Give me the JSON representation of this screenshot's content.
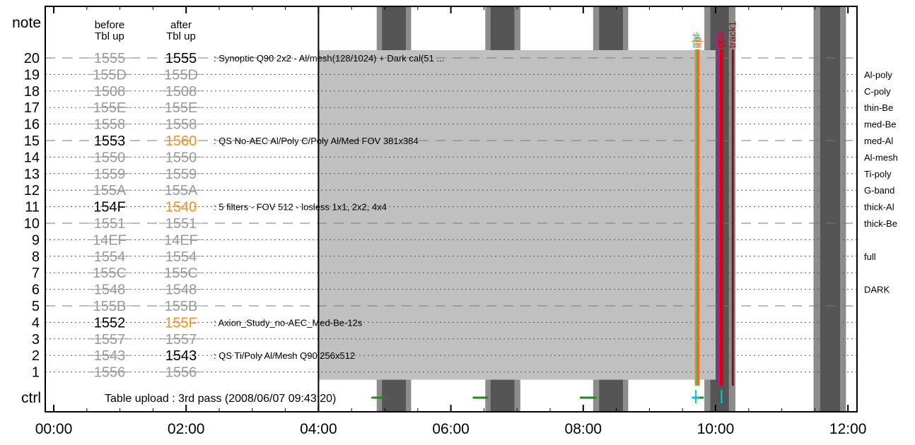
{
  "chart_data": {
    "type": "timeline",
    "title": "",
    "x_axis": {
      "unit": "hours",
      "range": [
        0,
        12.32
      ],
      "tick_labels": [
        "00:00",
        "02:00",
        "04:00",
        "06:00",
        "08:00",
        "10:00",
        "12:00"
      ],
      "tick_values": [
        0,
        2,
        4,
        6,
        8,
        10,
        12
      ]
    },
    "y_axis": {
      "top_label": "note",
      "bottom_label": "ctrl",
      "rows": [
        20,
        19,
        18,
        17,
        16,
        15,
        14,
        13,
        12,
        11,
        10,
        9,
        8,
        7,
        6,
        5,
        4,
        3,
        2,
        1
      ],
      "dashed_rows": [
        20,
        15,
        10,
        5
      ]
    },
    "column_headers": {
      "before": "before\nTbl up",
      "after": "after\nTbl up"
    },
    "table_rows": [
      {
        "row": 20,
        "before": "1555",
        "after": "1555",
        "before_style": "struck",
        "after_style": "current",
        "desc": ": Synoptic Q90 2x2 - Al/mesh(128/1024) + Dark cal(51 ..."
      },
      {
        "row": 19,
        "before": "155D",
        "after": "155D",
        "before_style": "struck",
        "after_style": "struck",
        "desc": ""
      },
      {
        "row": 18,
        "before": "1508",
        "after": "1508",
        "before_style": "struck",
        "after_style": "struck",
        "desc": ""
      },
      {
        "row": 17,
        "before": "155E",
        "after": "155E",
        "before_style": "struck",
        "after_style": "struck",
        "desc": ""
      },
      {
        "row": 16,
        "before": "1558",
        "after": "1558",
        "before_style": "struck",
        "after_style": "struck",
        "desc": ""
      },
      {
        "row": 15,
        "before": "1553",
        "after": "1560",
        "before_style": "current",
        "after_style": "changed",
        "desc": ": QS No-AEC Al/Poly C/Poly Al/Med FOV 381x384"
      },
      {
        "row": 14,
        "before": "1550",
        "after": "1550",
        "before_style": "struck",
        "after_style": "struck",
        "desc": ""
      },
      {
        "row": 13,
        "before": "1559",
        "after": "1559",
        "before_style": "struck",
        "after_style": "struck",
        "desc": ""
      },
      {
        "row": 12,
        "before": "155A",
        "after": "155A",
        "before_style": "struck",
        "after_style": "struck",
        "desc": ""
      },
      {
        "row": 11,
        "before": "154F",
        "after": "1540",
        "before_style": "current",
        "after_style": "changed",
        "desc": ": 5 filters - FOV 512 - losless 1x1, 2x2, 4x4"
      },
      {
        "row": 10,
        "before": "1551",
        "after": "1551",
        "before_style": "struck",
        "after_style": "struck",
        "desc": ""
      },
      {
        "row": 9,
        "before": "14EF",
        "after": "14EF",
        "before_style": "struck",
        "after_style": "struck",
        "desc": ""
      },
      {
        "row": 8,
        "before": "1554",
        "after": "1554",
        "before_style": "struck",
        "after_style": "struck",
        "desc": ""
      },
      {
        "row": 7,
        "before": "155C",
        "after": "155C",
        "before_style": "struck",
        "after_style": "struck",
        "desc": ""
      },
      {
        "row": 6,
        "before": "1548",
        "after": "1548",
        "before_style": "struck",
        "after_style": "struck",
        "desc": ""
      },
      {
        "row": 5,
        "before": "155B",
        "after": "155B",
        "before_style": "struck",
        "after_style": "struck",
        "desc": ""
      },
      {
        "row": 4,
        "before": "1552",
        "after": "155F",
        "before_style": "current",
        "after_style": "changed",
        "desc": ": Axion_Study_no-AEC_Med-Be-12s"
      },
      {
        "row": 3,
        "before": "1557",
        "after": "1557",
        "before_style": "struck",
        "after_style": "struck",
        "desc": ""
      },
      {
        "row": 2,
        "before": "1543",
        "after": "1543",
        "before_style": "struck",
        "after_style": "current",
        "desc": ": QS Ti/Poly Al/Mesh  Q90 256x512"
      },
      {
        "row": 1,
        "before": "1556",
        "after": "1556",
        "before_style": "struck",
        "after_style": "struck",
        "desc": ""
      }
    ],
    "filter_labels": [
      {
        "row": 19,
        "label": "Al-poly"
      },
      {
        "row": 18,
        "label": "C-poly"
      },
      {
        "row": 17,
        "label": "thin-Be"
      },
      {
        "row": 16,
        "label": "med-Be"
      },
      {
        "row": 15,
        "label": "med-Al"
      },
      {
        "row": 14,
        "label": "Al-mesh"
      },
      {
        "row": 13,
        "label": "Ti-poly"
      },
      {
        "row": 12,
        "label": "G-band"
      },
      {
        "row": 11,
        "label": "thick-Al"
      },
      {
        "row": 10,
        "label": "thick-Be"
      },
      {
        "row": 8,
        "label": "full"
      },
      {
        "row": 6,
        "label": "DARK"
      }
    ],
    "ctrl_label": "Table upload : 3rd pass (2008/06/07 09:43:20)",
    "orbit_bands": [
      {
        "outer_start": 4.88,
        "outer_end": 5.4,
        "inner_start": 4.96,
        "inner_end": 5.32
      },
      {
        "outer_start": 6.52,
        "outer_end": 7.05,
        "inner_start": 6.6,
        "inner_end": 6.96
      },
      {
        "outer_start": 8.15,
        "outer_end": 8.68,
        "inner_start": 8.24,
        "inner_end": 8.6
      },
      {
        "outer_start": 9.83,
        "outer_end": 10.3,
        "inner_start": 9.92,
        "inner_end": 10.2
      },
      {
        "outer_start": 11.48,
        "outer_end": 11.97,
        "inner_start": 11.58,
        "inner_end": 11.88
      }
    ],
    "schedule_block": {
      "start": 4.0,
      "end": 9.72,
      "row_top": 20,
      "row_bottom": 1
    },
    "thin_gray_block": {
      "start": 9.72,
      "end": 10.0
    },
    "vertical_markers": [
      {
        "x": 9.7,
        "color": "#ff8c1a",
        "label": "obs"
      },
      {
        "x": 9.72,
        "color": "#00c8e0",
        "label": "Tbl"
      },
      {
        "x": 9.74,
        "color": "#ff6a00",
        "label": "up"
      },
      {
        "x": 10.06,
        "color": "#d400d4",
        "label": "obs"
      },
      {
        "x": 10.08,
        "color": "#e00000",
        "label": "obs"
      },
      {
        "x": 10.1,
        "color": "#c01010",
        "label": "st"
      },
      {
        "x": 10.26,
        "color": "#8b1010",
        "label": "track1"
      }
    ],
    "ctrl_marks": [
      {
        "type": "segment",
        "start": 6.33,
        "end": 6.56,
        "color": "#1a8a1a"
      },
      {
        "type": "segment",
        "start": 7.95,
        "end": 8.2,
        "color": "#1a8a1a"
      },
      {
        "type": "segment",
        "start": 9.66,
        "end": 9.82,
        "color": "#1a8a1a"
      },
      {
        "type": "segment",
        "start": 4.8,
        "end": 5.02,
        "color": "#1a8a1a"
      },
      {
        "type": "tick",
        "x": 9.7,
        "color": "#00c8e0"
      },
      {
        "type": "tick",
        "x": 10.09,
        "color": "#00c8e0"
      }
    ],
    "colors": {
      "struck": "#999999",
      "current": "#000000",
      "changed": "#ff8c1a",
      "band_outer": "#8c8c8c",
      "band_inner": "#555555",
      "block": "#c0c0c0"
    }
  }
}
